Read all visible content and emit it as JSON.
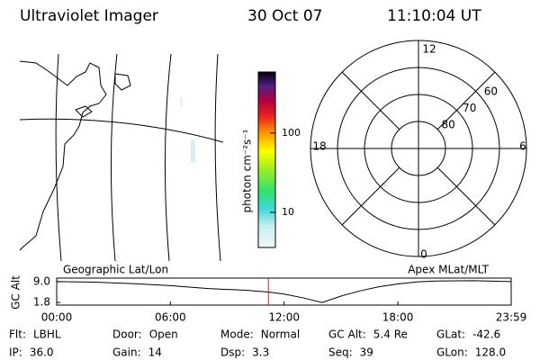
{
  "header": {
    "title": "Ultraviolet Imager",
    "date": "30 Oct 07",
    "time": "11:10:04 UT"
  },
  "colorbar": {
    "label": "photon cm⁻²s⁻¹",
    "scale": "log",
    "lim": [
      3.6,
      590
    ],
    "ticks": [
      10,
      100
    ]
  },
  "polar": {
    "mlt_labels": [
      "12",
      "18",
      "6",
      "0"
    ],
    "lat_lim": [
      50,
      90
    ],
    "lat_rings": [
      80,
      70,
      60
    ]
  },
  "timeline": {
    "ylabel": "GC Alt",
    "left_label": "Geographic Lat/Lon",
    "right_label": "Apex MLat/MLT",
    "xlim": [
      0,
      23.98
    ],
    "xticks": [
      {
        "value": 0,
        "label": "00:00"
      },
      {
        "value": 6,
        "label": "06:00"
      },
      {
        "value": 12,
        "label": "12:00"
      },
      {
        "value": 18,
        "label": "18:00"
      },
      {
        "value": 23.98,
        "label": "23:59"
      }
    ],
    "ylim": [
      0.9,
      10.2
    ],
    "yticks": [
      {
        "value": 9,
        "label": "9.0"
      },
      1.8
    ],
    "x": [
      0,
      2,
      4,
      6,
      8,
      10,
      11.17,
      12,
      13,
      14,
      15,
      16,
      17,
      18,
      19,
      20,
      22,
      23.98
    ],
    "values": [
      9.0,
      8.8,
      8.3,
      7.6,
      6.6,
      6.0,
      5.4,
      4.7,
      3.4,
      1.8,
      4.0,
      5.8,
      7.2,
      8.2,
      8.9,
      9.2,
      9.3,
      9.0
    ],
    "marker": 11.17,
    "marker_color": "#cc2222"
  },
  "footer": [
    {
      "label": "Flt:",
      "value": "LBHL"
    },
    {
      "label": "IP:",
      "value": "36.0"
    },
    {
      "label": "Door:",
      "value": "Open"
    },
    {
      "label": "Gain:",
      "value": "14"
    },
    {
      "label": "Mode:",
      "value": "Normal"
    },
    {
      "label": "Dsp:",
      "value": "3.3"
    },
    {
      "label": "GC Alt:",
      "value": "5.4 Re"
    },
    {
      "label": "Seq:",
      "value": "39"
    },
    {
      "label": "GLat:",
      "value": "-42.6"
    },
    {
      "label": "GLon:",
      "value": "128.0"
    }
  ]
}
